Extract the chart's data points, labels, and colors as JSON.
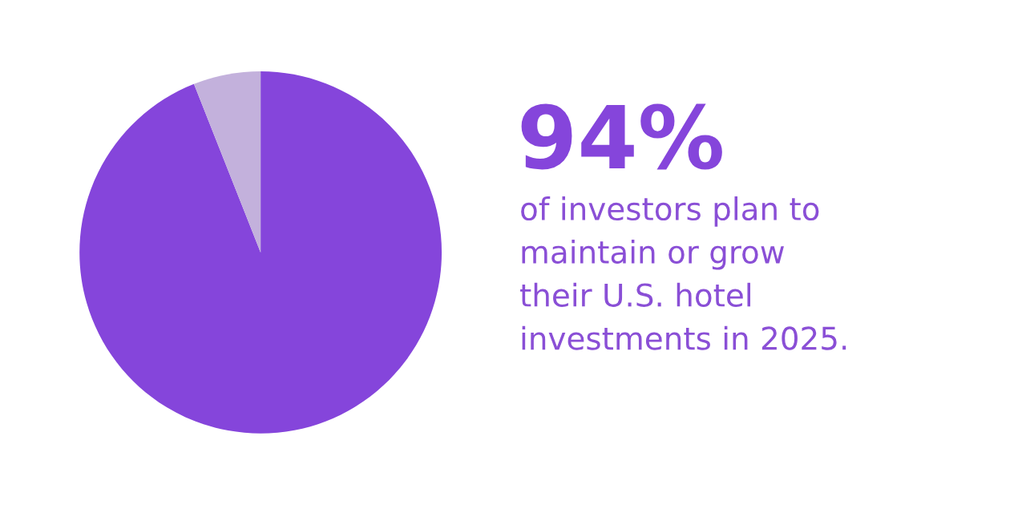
{
  "chart_data": {
    "type": "pie",
    "title": "94%",
    "subtitle": "of investors plan to\nmaintain or grow\ntheir U.S. hotel\ninvestments in 2025.",
    "categories": [
      null,
      null
    ],
    "values": [
      94,
      6
    ],
    "colors": [
      "#8545db",
      "#c3b1dc"
    ]
  }
}
